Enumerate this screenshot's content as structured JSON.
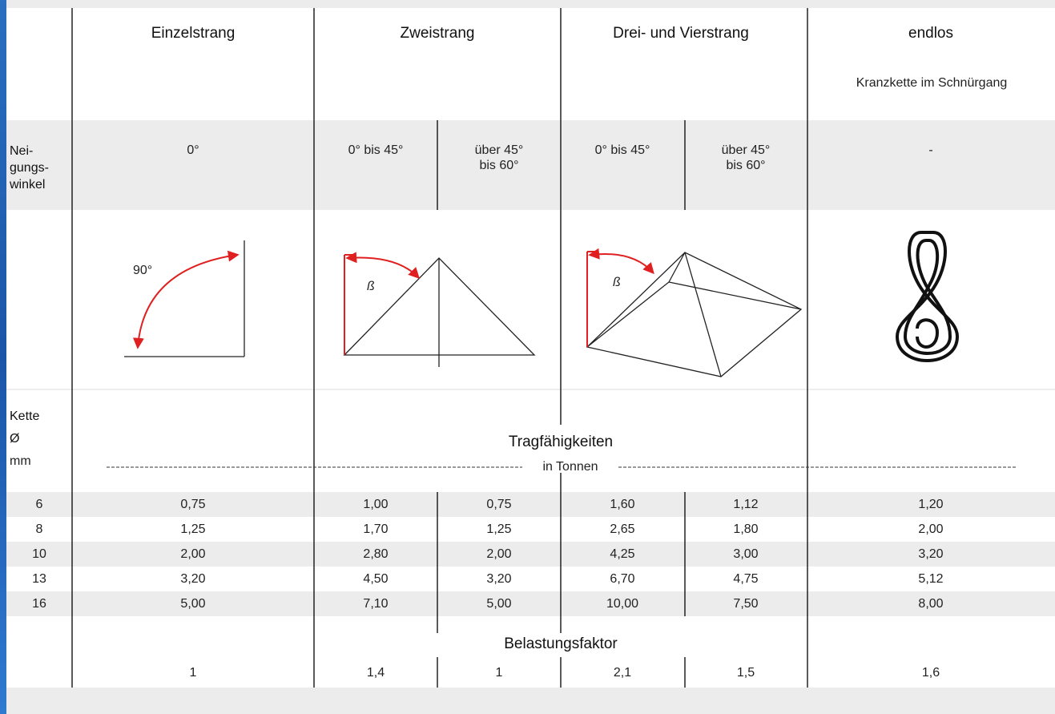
{
  "header": {
    "columns": [
      "Einzelstrang",
      "Zweistrang",
      "Drei- und Vierstrang",
      "endlos"
    ],
    "endlos_note": "Kranzkette im Schnürgang"
  },
  "angle_row": {
    "label": [
      "Nei-",
      "gungs-",
      "winkel"
    ],
    "values": [
      [
        "0°"
      ],
      [
        "0° bis 45°"
      ],
      [
        "über 45°",
        "bis 60°"
      ],
      [
        "0° bis 45°"
      ],
      [
        "über 45°",
        "bis 60°"
      ],
      [
        "-"
      ]
    ]
  },
  "diagrams": {
    "einzelstrang_angle": "90°",
    "zweistrang_angle": "ß",
    "vierstrang_angle": "ß"
  },
  "capacity": {
    "label": [
      "Kette",
      "Ø",
      "mm"
    ],
    "title": "Tragfähigkeiten",
    "unit": "in Tonnen",
    "rows": [
      [
        "6",
        "0,75",
        "1,00",
        "0,75",
        "1,60",
        "1,12",
        "1,20"
      ],
      [
        "8",
        "1,25",
        "1,70",
        "1,25",
        "2,65",
        "1,80",
        "2,00"
      ],
      [
        "10",
        "2,00",
        "2,80",
        "2,00",
        "4,25",
        "3,00",
        "3,20"
      ],
      [
        "13",
        "3,20",
        "4,50",
        "3,20",
        "6,70",
        "4,75",
        "5,12"
      ],
      [
        "16",
        "5,00",
        "7,10",
        "5,00",
        "10,00",
        "7,50",
        "8,00"
      ]
    ]
  },
  "factor": {
    "title": "Belastungsfaktor",
    "values": [
      "1",
      "1,4",
      "1",
      "2,1",
      "1,5",
      "1,6"
    ]
  }
}
